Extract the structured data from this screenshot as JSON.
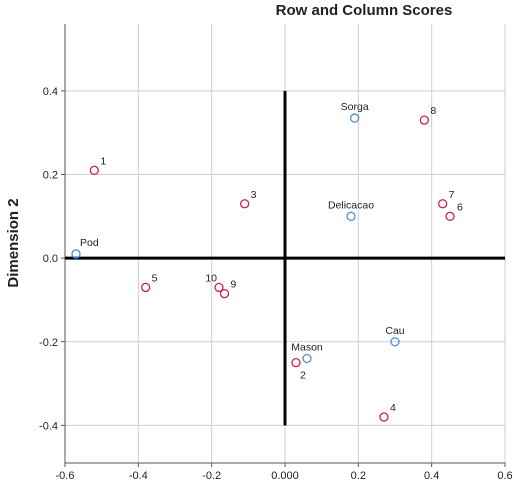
{
  "chart_data": {
    "type": "scatter",
    "title": "Row and Column Scores",
    "xlabel": "",
    "ylabel": "Dimension 2",
    "xlim": [
      -0.6,
      0.6
    ],
    "ylim": [
      -0.49,
      0.56
    ],
    "x_ticks": [
      -0.6,
      -0.4,
      -0.2,
      0.0,
      0.2,
      0.4,
      0.6
    ],
    "x_tick_labels": [
      "-0.6",
      "-0.4",
      "-0.2",
      "0.000",
      "0.2",
      "0.4",
      "0.6"
    ],
    "y_ticks": [
      0.4,
      0.2,
      0.0,
      -0.2,
      -0.4
    ],
    "y_tick_labels": [
      "0.4",
      "0.2",
      "0.0",
      "-0.2",
      "-0.4"
    ],
    "grid": true,
    "series": [
      {
        "color": "#c8234a",
        "points": [
          {
            "label": "1",
            "x": -0.52,
            "y": 0.21
          },
          {
            "label": "2",
            "x": 0.03,
            "y": -0.25
          },
          {
            "label": "3",
            "x": -0.11,
            "y": 0.13
          },
          {
            "label": "4",
            "x": 0.27,
            "y": -0.38
          },
          {
            "label": "5",
            "x": -0.38,
            "y": -0.07
          },
          {
            "label": "6",
            "x": 0.45,
            "y": 0.1
          },
          {
            "label": "7",
            "x": 0.43,
            "y": 0.13
          },
          {
            "label": "8",
            "x": 0.38,
            "y": 0.33
          },
          {
            "label": "9",
            "x": -0.165,
            "y": -0.085
          },
          {
            "label": "10",
            "x": -0.18,
            "y": -0.07
          }
        ]
      },
      {
        "color": "#4a90d9",
        "points": [
          {
            "label": "Pod",
            "x": -0.57,
            "y": 0.01
          },
          {
            "label": "Sorga",
            "x": 0.19,
            "y": 0.335
          },
          {
            "label": "Delicacao",
            "x": 0.18,
            "y": 0.1
          },
          {
            "label": "Mason",
            "x": 0.06,
            "y": -0.24
          },
          {
            "label": "Cau",
            "x": 0.3,
            "y": -0.2
          }
        ]
      }
    ]
  }
}
